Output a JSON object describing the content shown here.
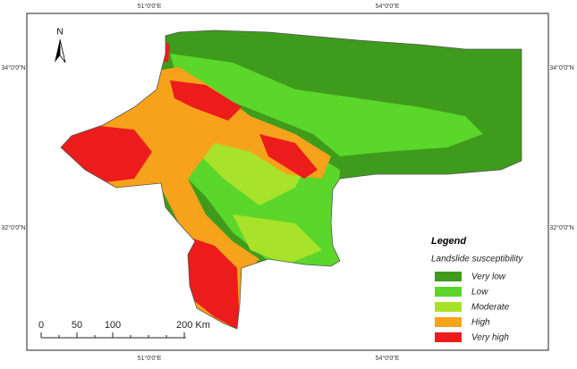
{
  "map": {
    "north_arrow": "N",
    "coordinates": {
      "top": [
        "51°0'0\"E",
        "54°0'0\"E"
      ],
      "bottom": [
        "51°0'0\"E",
        "54°0'0\"E"
      ],
      "left": [
        "34°0'0\"N",
        "32°0'0\"N"
      ],
      "right": [
        "34°0'0\"N",
        "32°0'0\"N"
      ]
    },
    "scale_bar": [
      "0",
      "50",
      "100",
      "200 Km"
    ],
    "legend": {
      "title": "Legend",
      "subtitle": "Landslide susceptibility",
      "items": [
        {
          "label": "Very low",
          "color": "#3f9b1c"
        },
        {
          "label": "Low",
          "color": "#5bd62b"
        },
        {
          "label": "Moderate",
          "color": "#a8e22a"
        },
        {
          "label": "High",
          "color": "#f7a21b"
        },
        {
          "label": "Very high",
          "color": "#ec1c1c"
        }
      ]
    }
  }
}
